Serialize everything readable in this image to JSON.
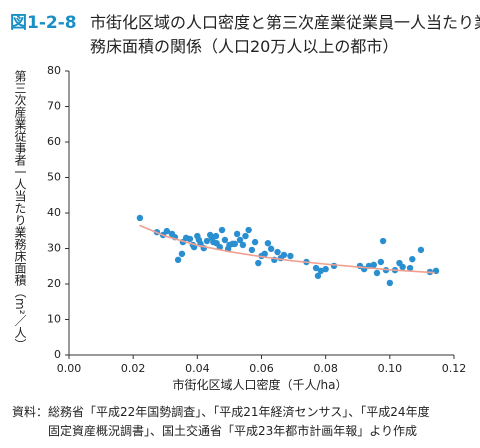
{
  "chart_data": {
    "type": "scatter",
    "figure_label": "図1-2-8",
    "title_lines": [
      "市街化区域の人口密度と第三次産業従業員一人当たり業",
      "務床面積の関係（人口20万人以上の都市）"
    ],
    "ylabel": "第三次産業従事者一人当たり業務床面積（m²／人）",
    "xlabel": "市街化区域人口密度（千人/ha）",
    "source_lines": [
      "資料：総務省「平成22年国勢調査」、「平成21年経済センサス」、「平成24年度",
      "固定資産概況調書」、国土交通省「平成23年都市計画年報」より作成"
    ],
    "xlim": [
      0,
      0.12
    ],
    "ylim": [
      0,
      80
    ],
    "xticks": [
      {
        "value": 0,
        "label": "0.00"
      },
      {
        "value": 0.02,
        "label": "0.02"
      },
      {
        "value": 0.04,
        "label": "0.04"
      },
      {
        "value": 0.06,
        "label": "0.06"
      },
      {
        "value": 0.08,
        "label": "0.08"
      },
      {
        "value": 0.1,
        "label": "0.10"
      },
      {
        "value": 0.12,
        "label": "0.12"
      }
    ],
    "yticks": [
      0,
      10,
      20,
      30,
      40,
      50,
      60,
      70,
      80
    ],
    "grid": false,
    "series": [
      {
        "type": "scatter",
        "color": "#2a8fd0",
        "x": [
          0.0221,
          0.0274,
          0.0293,
          0.0305,
          0.0321,
          0.033,
          0.034,
          0.0352,
          0.0355,
          0.0365,
          0.0377,
          0.0386,
          0.039,
          0.04,
          0.0405,
          0.041,
          0.042,
          0.043,
          0.044,
          0.0446,
          0.045,
          0.0458,
          0.046,
          0.047,
          0.0477,
          0.0486,
          0.0496,
          0.05,
          0.051,
          0.0517,
          0.0524,
          0.0533,
          0.0542,
          0.055,
          0.056,
          0.057,
          0.058,
          0.059,
          0.06,
          0.061,
          0.062,
          0.063,
          0.064,
          0.065,
          0.066,
          0.067,
          0.069,
          0.074,
          0.077,
          0.0776,
          0.0785,
          0.08,
          0.0826,
          0.0907,
          0.092,
          0.0935,
          0.095,
          0.096,
          0.0972,
          0.0979,
          0.0988,
          0.1,
          0.1016,
          0.103,
          0.104,
          0.1063,
          0.107,
          0.1097,
          0.1125,
          0.1144
        ],
        "values": [
          38.6,
          34.6,
          33.8,
          34.9,
          34.1,
          33.2,
          26.8,
          28.5,
          31.8,
          33.0,
          32.7,
          31.0,
          30.4,
          33.5,
          32.4,
          31.3,
          30.1,
          32.1,
          33.8,
          33.0,
          31.8,
          33.5,
          31.5,
          30.4,
          35.2,
          32.4,
          29.9,
          31.0,
          31.3,
          31.3,
          34.1,
          32.4,
          31.0,
          33.5,
          35.2,
          29.6,
          31.8,
          25.9,
          27.9,
          28.5,
          31.5,
          29.9,
          26.8,
          29.0,
          27.3,
          28.2,
          27.9,
          26.2,
          24.5,
          22.3,
          23.7,
          24.2,
          25.1,
          25.1,
          24.2,
          25.1,
          25.4,
          23.1,
          26.2,
          32.1,
          23.9,
          20.3,
          23.9,
          25.9,
          24.8,
          24.5,
          27.0,
          29.6,
          23.4,
          23.7
        ]
      },
      {
        "type": "line",
        "color": "#f0a090",
        "x": [
          0.022,
          0.03,
          0.04,
          0.05,
          0.06,
          0.07,
          0.08,
          0.09,
          0.1,
          0.114
        ],
        "values": [
          36.5,
          33.5,
          30.9,
          29.1,
          27.7,
          26.5,
          25.6,
          24.8,
          24.0,
          23.2
        ]
      }
    ]
  }
}
